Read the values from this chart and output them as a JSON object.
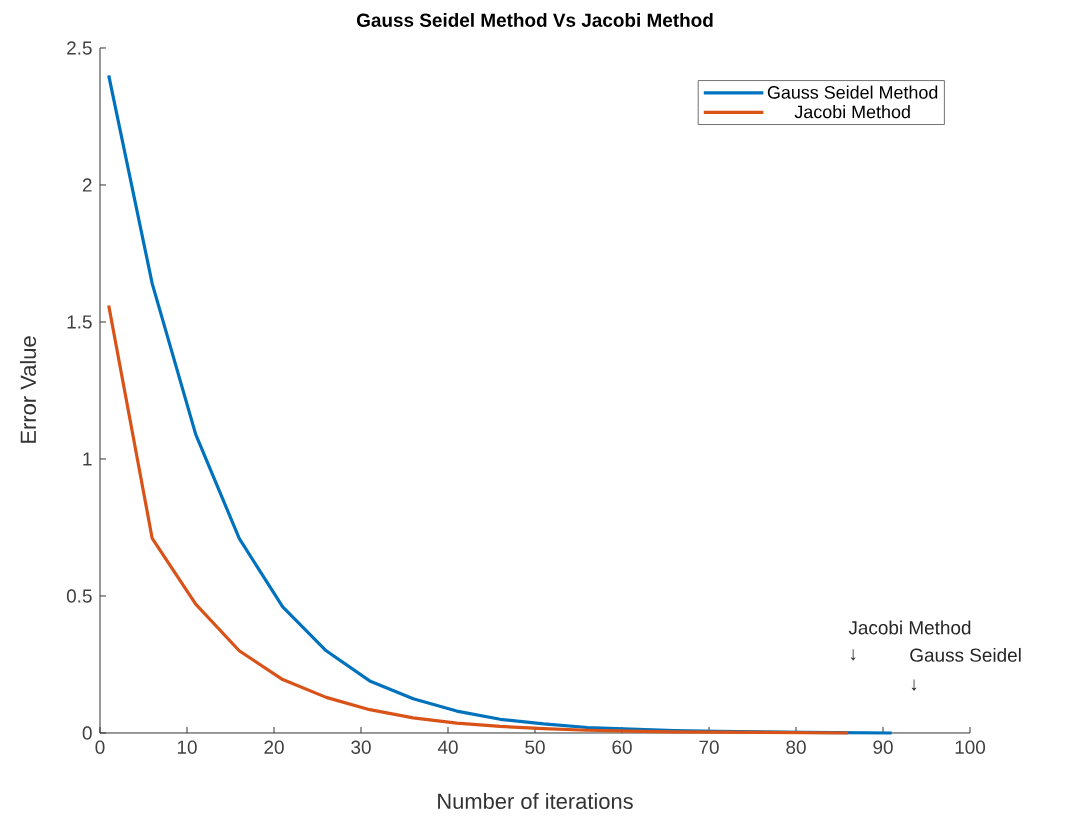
{
  "chart_data": {
    "type": "line",
    "title": "Gauss Seidel Method Vs Jacobi Method",
    "xlabel": "Number of iterations",
    "ylabel": "Error Value",
    "xlim": [
      0,
      100
    ],
    "ylim": [
      0,
      2.5
    ],
    "xticks": [
      0,
      10,
      20,
      30,
      40,
      50,
      60,
      70,
      80,
      90,
      100
    ],
    "yticks": [
      0,
      0.5,
      1,
      1.5,
      2,
      2.5
    ],
    "legend": "top right",
    "series": [
      {
        "name": "Gauss Seidel Method",
        "color": "#0072bd",
        "x": [
          1,
          6,
          11,
          16,
          21,
          26,
          31,
          36,
          41,
          46,
          51,
          56,
          61,
          66,
          71,
          76,
          81,
          86,
          91
        ],
        "values": [
          2.4,
          1.64,
          1.09,
          0.71,
          0.46,
          0.3,
          0.19,
          0.125,
          0.08,
          0.05,
          0.033,
          0.02,
          0.014,
          0.009,
          0.006,
          0.004,
          0.002,
          0.001,
          0
        ]
      },
      {
        "name": "Jacobi Method",
        "color": "#d95319",
        "x": [
          1,
          6,
          11,
          16,
          21,
          26,
          31,
          36,
          41,
          46,
          51,
          56,
          61,
          66,
          71,
          76,
          81,
          86
        ],
        "values": [
          1.56,
          0.71,
          0.47,
          0.3,
          0.195,
          0.13,
          0.085,
          0.055,
          0.036,
          0.024,
          0.016,
          0.01,
          0.007,
          0.004,
          0.003,
          0.002,
          0.001,
          0
        ]
      }
    ],
    "annotations": [
      "Jacobi Method",
      "↓",
      "Gauss Seidel",
      "↓"
    ]
  }
}
